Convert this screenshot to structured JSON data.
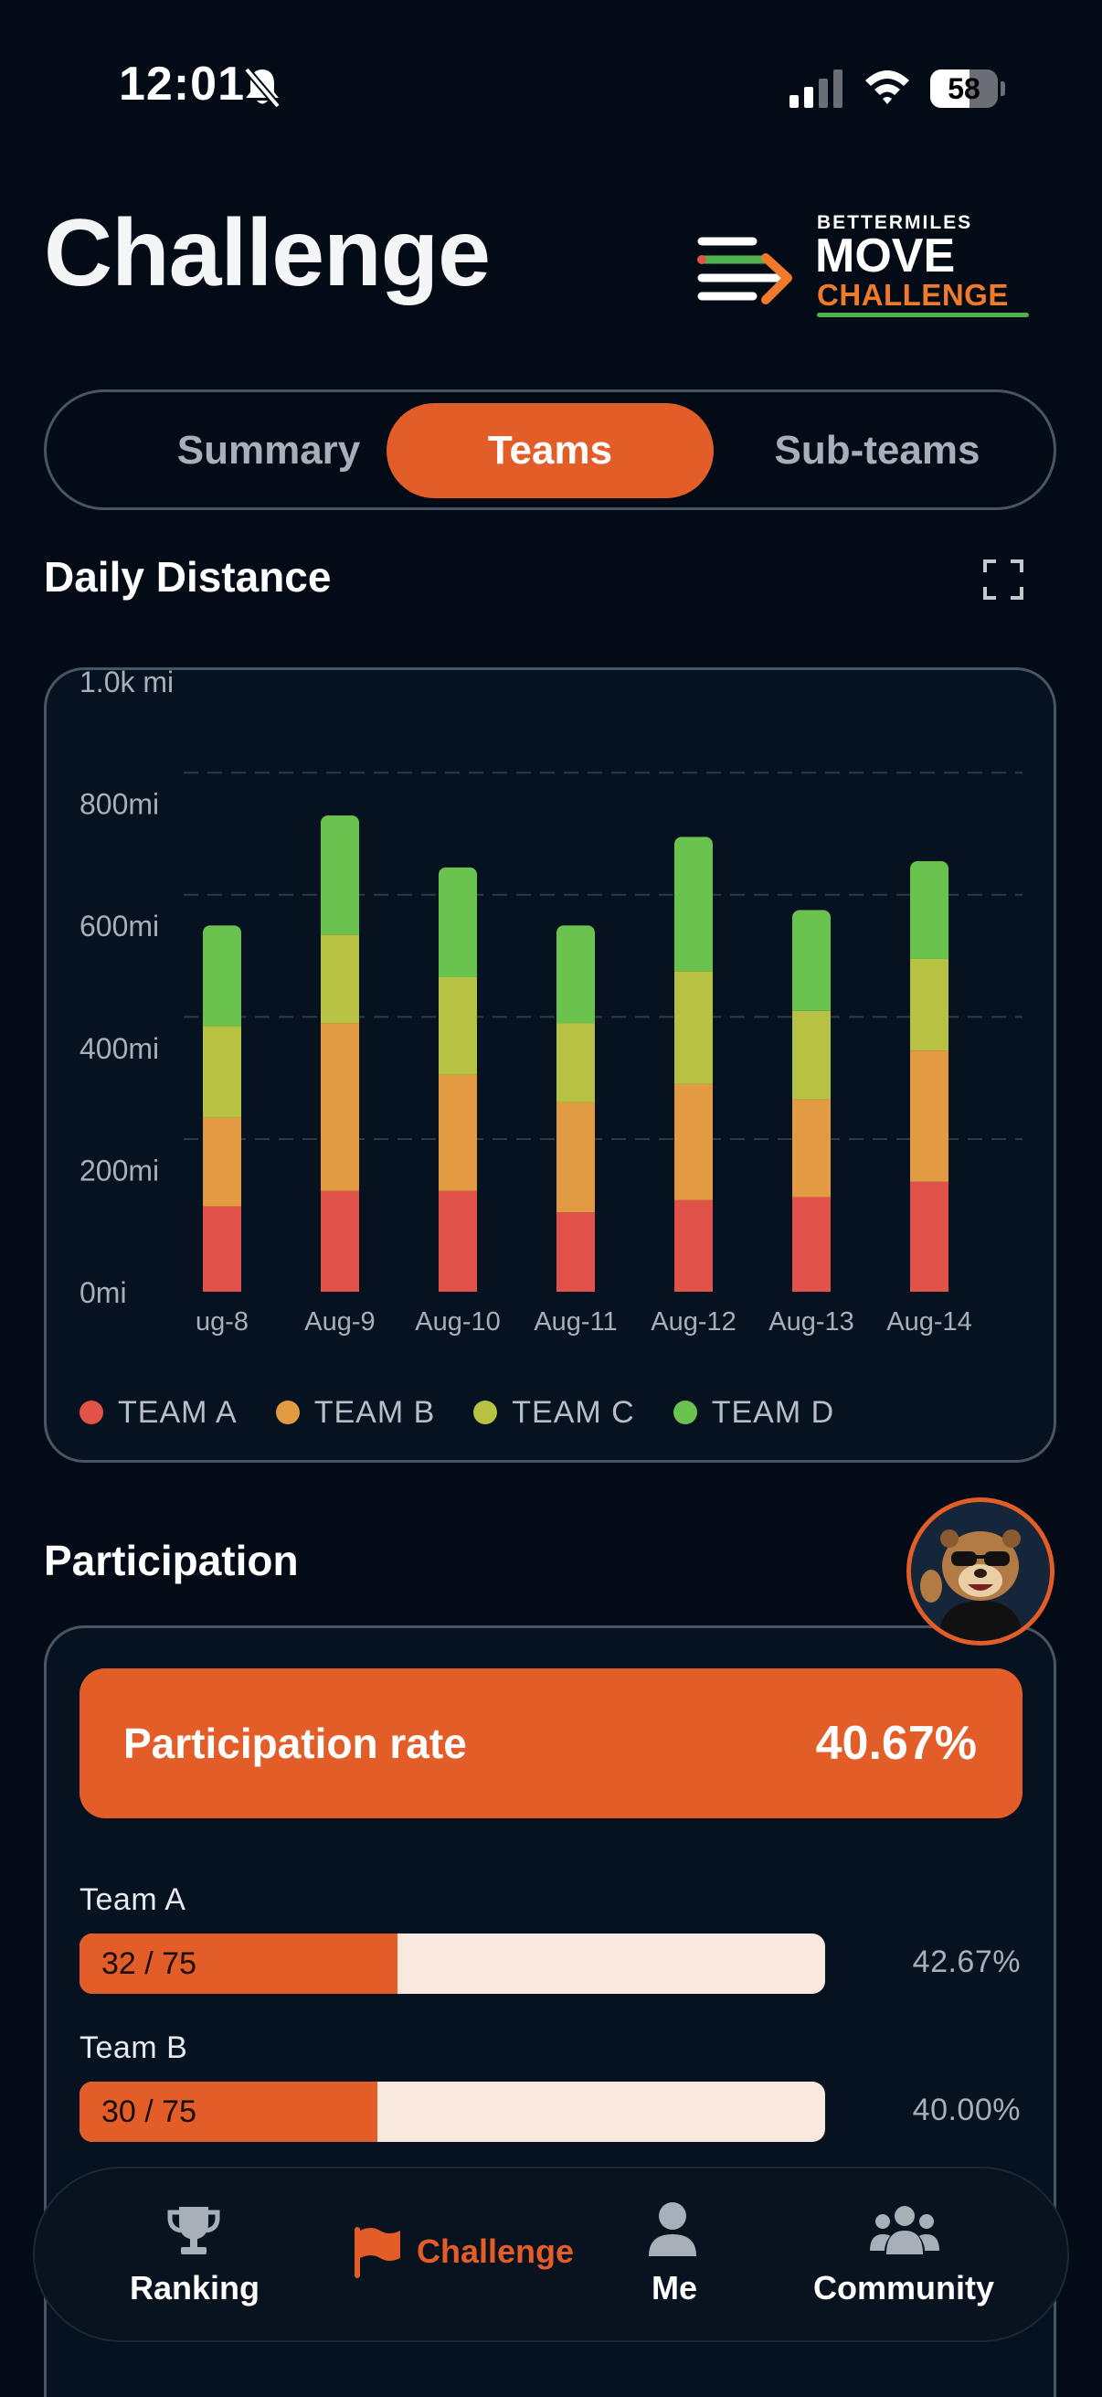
{
  "status_bar": {
    "time": "12:01",
    "battery_level": "58",
    "battery_fraction": 0.58
  },
  "header": {
    "title": "Challenge",
    "logo": {
      "small": "BETTERMILES",
      "move": "MOVE",
      "challenge": "CHALLENGE"
    }
  },
  "tabs": [
    {
      "label": "Summary",
      "active": false
    },
    {
      "label": "Teams",
      "active": true
    },
    {
      "label": "Sub-teams",
      "active": false
    }
  ],
  "daily_distance": {
    "title": "Daily Distance",
    "icon": "expand-icon"
  },
  "chart_data": {
    "type": "bar",
    "stacked": true,
    "categories": [
      "ug-8",
      "Aug-9",
      "Aug-10",
      "Aug-11",
      "Aug-12",
      "Aug-13",
      "Aug-14"
    ],
    "series": [
      {
        "name": "TEAM A",
        "color": "#e0524a",
        "values": [
          140,
          165,
          165,
          130,
          150,
          155,
          180
        ]
      },
      {
        "name": "TEAM B",
        "color": "#e29b42",
        "values": [
          145,
          275,
          190,
          180,
          190,
          160,
          215
        ]
      },
      {
        "name": "TEAM C",
        "color": "#b8c242",
        "values": [
          150,
          145,
          160,
          130,
          185,
          145,
          150
        ]
      },
      {
        "name": "TEAM D",
        "color": "#6bc34f",
        "values": [
          165,
          195,
          180,
          160,
          220,
          165,
          160
        ]
      }
    ],
    "y_ticks": [
      "0mi",
      "200mi",
      "400mi",
      "600mi",
      "800mi",
      "1.0k mi"
    ],
    "ylim": [
      0,
      1000
    ],
    "grid": true,
    "legend_position": "bottom-left"
  },
  "participation": {
    "title": "Participation",
    "rate_label": "Participation rate",
    "rate_value": "40.67%",
    "teams": [
      {
        "name": "Team A",
        "count": "32 / 75",
        "fraction": 0.4267,
        "percent": "42.67%"
      },
      {
        "name": "Team B",
        "count": "30 / 75",
        "fraction": 0.4,
        "percent": "40.00%"
      }
    ]
  },
  "bottom_nav": [
    {
      "label": "Ranking",
      "icon": "trophy-icon",
      "active": false
    },
    {
      "label": "Challenge",
      "icon": "flag-icon",
      "active": true
    },
    {
      "label": "Me",
      "icon": "person-icon",
      "active": false
    },
    {
      "label": "Community",
      "icon": "people-icon",
      "active": false
    }
  ],
  "colors": {
    "accent": "#e35d28",
    "background": "#030b16",
    "inactive_nav": "#a7afb9"
  }
}
